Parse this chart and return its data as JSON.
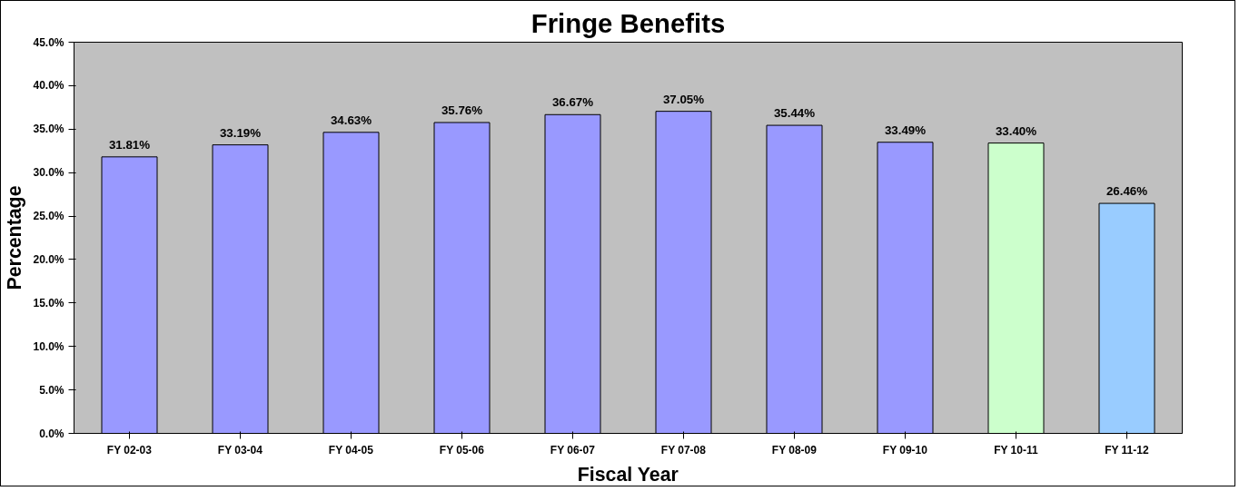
{
  "chart_data": {
    "type": "bar",
    "title": "Fringe Benefits",
    "xlabel": "Fiscal Year",
    "ylabel": "Percentage",
    "categories": [
      "FY 02-03",
      "FY 03-04",
      "FY 04-05",
      "FY 05-06",
      "FY 06-07",
      "FY 07-08",
      "FY 08-09",
      "FY 09-10",
      "FY 10-11",
      "FY 11-12"
    ],
    "values": [
      31.81,
      33.19,
      34.63,
      35.76,
      36.67,
      37.05,
      35.44,
      33.49,
      33.4,
      26.46
    ],
    "colors": [
      "#9999ff",
      "#9999ff",
      "#9999ff",
      "#9999ff",
      "#9999ff",
      "#9999ff",
      "#9999ff",
      "#9999ff",
      "#ccffcc",
      "#99ccff"
    ],
    "value_labels": [
      "31.81%",
      "33.19%",
      "34.63%",
      "35.76%",
      "36.67%",
      "37.05%",
      "35.44%",
      "33.49%",
      "33.40%",
      "26.46%"
    ],
    "ylim": [
      0,
      45
    ],
    "yticks": [
      {
        "value": 0,
        "label": "0.0%"
      },
      {
        "value": 5,
        "label": "5.0%"
      },
      {
        "value": 10,
        "label": "10.0%"
      },
      {
        "value": 15,
        "label": "15.0%"
      },
      {
        "value": 20,
        "label": "20.0%"
      },
      {
        "value": 25,
        "label": "25.0%"
      },
      {
        "value": 30,
        "label": "30.0%"
      },
      {
        "value": 35,
        "label": "35.0%"
      },
      {
        "value": 40,
        "label": "40.0%"
      },
      {
        "value": 45,
        "label": "45.0%"
      }
    ],
    "grid": false
  }
}
